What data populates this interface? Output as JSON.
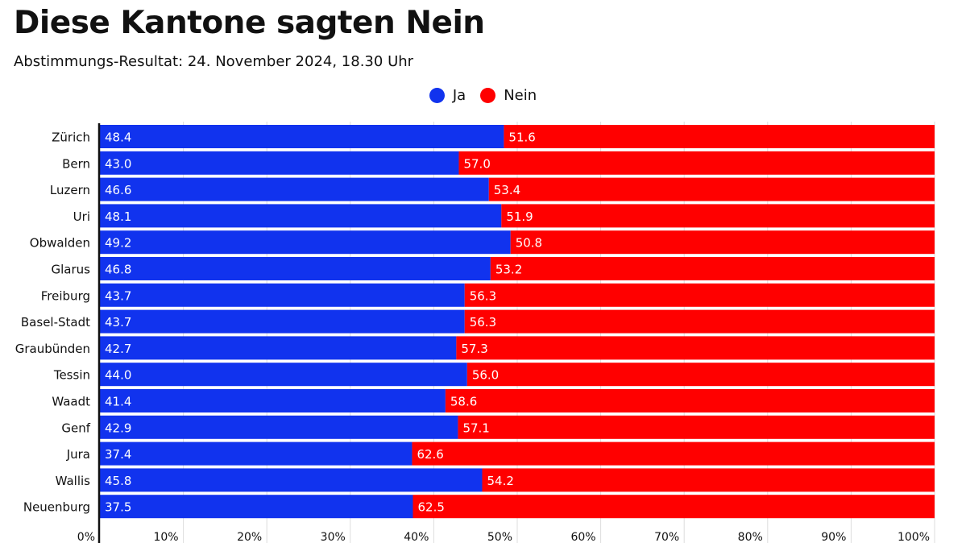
{
  "header": {
    "title": "Diese Kantone sagten Nein",
    "subtitle": "Abstimmungs-Resultat: 24. November 2024, 18.30 Uhr"
  },
  "legend": {
    "items": [
      {
        "label": "Ja",
        "color": "#1133ee"
      },
      {
        "label": "Nein",
        "color": "#ff0000"
      }
    ]
  },
  "chart_data": {
    "type": "bar",
    "orientation": "horizontal",
    "stacked": true,
    "categories": [
      "Zürich",
      "Bern",
      "Luzern",
      "Uri",
      "Obwalden",
      "Glarus",
      "Freiburg",
      "Basel-Stadt",
      "Graubünden",
      "Tessin",
      "Waadt",
      "Genf",
      "Jura",
      "Wallis",
      "Neuenburg"
    ],
    "series": [
      {
        "name": "Ja",
        "color": "#1133ee",
        "values": [
          48.4,
          43.0,
          46.6,
          48.1,
          49.2,
          46.8,
          43.7,
          43.7,
          42.7,
          44.0,
          41.4,
          42.9,
          37.4,
          45.8,
          37.5
        ]
      },
      {
        "name": "Nein",
        "color": "#ff0000",
        "values": [
          51.6,
          57.0,
          53.4,
          51.9,
          50.8,
          53.2,
          56.3,
          56.3,
          57.3,
          56.0,
          58.6,
          57.1,
          62.6,
          54.2,
          62.5
        ]
      }
    ],
    "value_labels": {
      "Ja": [
        "48.4",
        "43.0",
        "46.6",
        "48.1",
        "49.2",
        "46.8",
        "43.7",
        "43.7",
        "42.7",
        "44.0",
        "41.4",
        "42.9",
        "37.4",
        "45.8",
        "37.5"
      ],
      "Nein": [
        "51.6",
        "57.0",
        "53.4",
        "51.9",
        "50.8",
        "53.2",
        "56.3",
        "56.3",
        "57.3",
        "56.0",
        "58.6",
        "57.1",
        "62.6",
        "54.2",
        "62.5"
      ]
    },
    "x_ticks": [
      "0%",
      "10%",
      "20%",
      "30%",
      "40%",
      "50%",
      "60%",
      "70%",
      "80%",
      "90%",
      "100%"
    ],
    "xlim": [
      0,
      100
    ],
    "grid": true,
    "legend_position": "top-center"
  }
}
